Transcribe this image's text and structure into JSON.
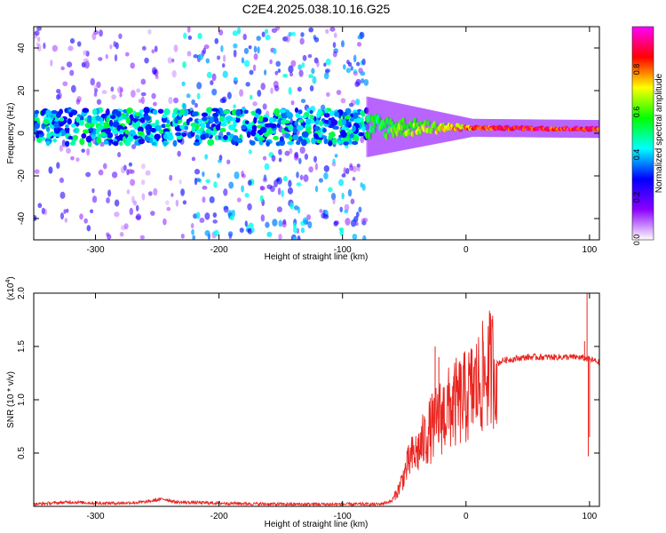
{
  "title": "C2E4.2025.038.10.16.G25",
  "chart_data": [
    {
      "type": "heatmap",
      "description_role": "spectrogram",
      "xlabel": "Height of straight line (km)",
      "ylabel": "Frequency (Hz)",
      "xlim": [
        -350,
        108
      ],
      "ylim": [
        -50,
        50
      ],
      "xticks": [
        -300,
        -200,
        -100,
        0,
        100
      ],
      "yticks": [
        -40,
        -20,
        0,
        20,
        40
      ],
      "colorbar": {
        "label": "Normalized spectral amplitude",
        "range": [
          0,
          1
        ],
        "ticks": [
          "0.0",
          "0.2",
          "0.4",
          "0.6",
          "0.8"
        ],
        "tick_values": [
          0.0,
          0.2,
          0.4,
          0.6,
          0.8
        ],
        "colormap": [
          "#ffffff",
          "#8b00ff",
          "#0000ff",
          "#00ffff",
          "#00ff00",
          "#ffff00",
          "#ff0000",
          "#ff00ff"
        ]
      },
      "noise_regions": [
        {
          "x": [
            -350,
            -250
          ],
          "level": 0.25
        },
        {
          "x": [
            -245,
            -230
          ],
          "level": 0.2
        },
        {
          "x": [
            -230,
            -80
          ],
          "level": 0.4
        }
      ],
      "signal_band": {
        "x": [
          -350,
          -80
        ],
        "center_hz": 3,
        "width_hz": 8,
        "level": 0.5
      },
      "signal_line": {
        "x": [
          -80,
          108
        ],
        "center_hz": [
          3,
          2
        ],
        "level_start": 0.55,
        "level_end": 0.95
      }
    },
    {
      "type": "line",
      "xlabel": "Height of straight line (km)",
      "ylabel": "SNR (10 * v/v)",
      "multiplier_label": "(x10",
      "multiplier_exp": "4",
      "multiplier_close": ")",
      "xlim": [
        -350,
        108
      ],
      "ylim": [
        0,
        2.0
      ],
      "xticks": [
        -300,
        -200,
        -100,
        0,
        100
      ],
      "yticks": [
        "0.5",
        "1.0",
        "1.5",
        "2.0"
      ],
      "ytick_values": [
        0.5,
        1.0,
        1.5,
        2.0
      ],
      "series": [
        {
          "color": "#e8241f",
          "profile": [
            [
              -350,
              0.02
            ],
            [
              -320,
              0.04
            ],
            [
              -300,
              0.03
            ],
            [
              -280,
              0.03
            ],
            [
              -260,
              0.04
            ],
            [
              -245,
              0.07
            ],
            [
              -235,
              0.04
            ],
            [
              -200,
              0.03
            ],
            [
              -150,
              0.02
            ],
            [
              -100,
              0.02
            ],
            [
              -70,
              0.02
            ],
            [
              -60,
              0.05
            ],
            [
              -55,
              0.15
            ],
            [
              -50,
              0.3
            ],
            [
              -45,
              0.45
            ],
            [
              -40,
              0.5
            ],
            [
              -30,
              0.7
            ],
            [
              -20,
              0.85
            ],
            [
              -10,
              0.95
            ],
            [
              0,
              1.02
            ],
            [
              10,
              1.15
            ],
            [
              20,
              1.3
            ],
            [
              30,
              1.37
            ],
            [
              50,
              1.4
            ],
            [
              70,
              1.4
            ],
            [
              90,
              1.4
            ],
            [
              100,
              1.38
            ],
            [
              108,
              1.35
            ]
          ],
          "spikes": [
            [
              -25,
              1.5
            ],
            [
              -22,
              1.4
            ],
            [
              -10,
              1.22
            ],
            [
              -5,
              1.3
            ],
            [
              98,
              2.05
            ],
            [
              99,
              0.47
            ],
            [
              100,
              0.65
            ],
            [
              96,
              1.55
            ]
          ]
        }
      ]
    }
  ]
}
